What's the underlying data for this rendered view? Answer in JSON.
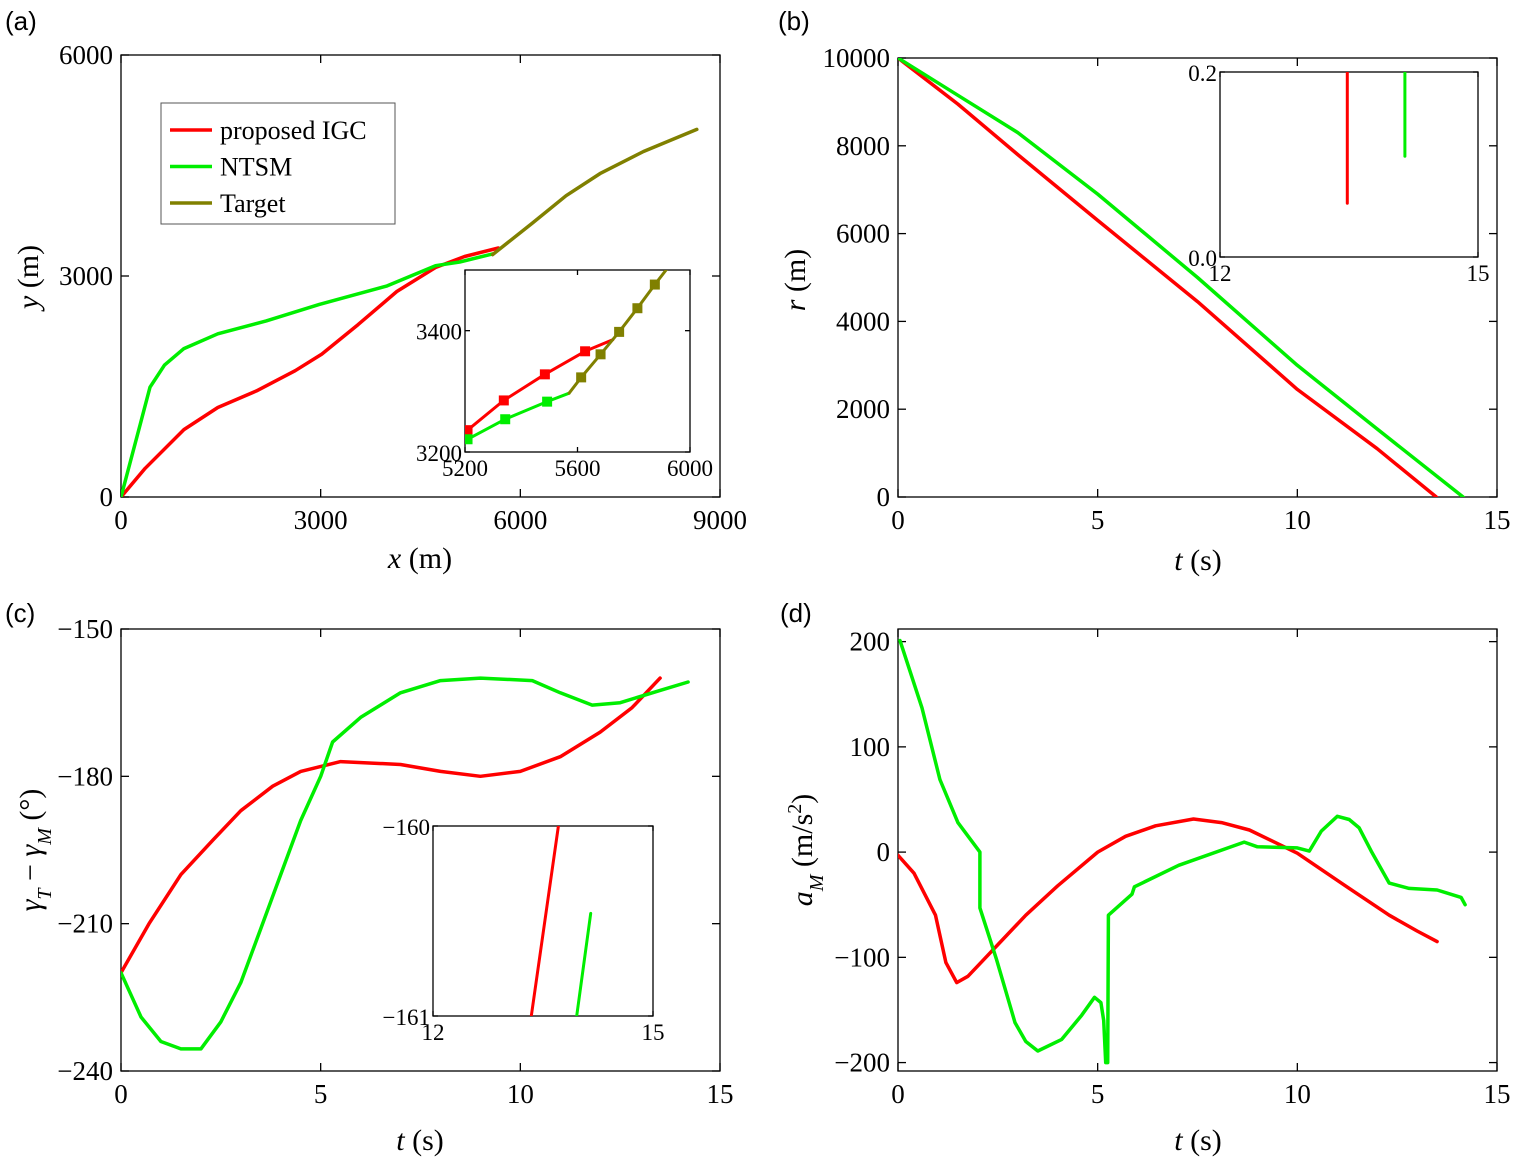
{
  "chart_data": [
    {
      "panel": "(a)",
      "type": "line",
      "xlabel": [
        {
          "t": "x",
          "i": true
        },
        {
          "t": " (m)"
        }
      ],
      "ylabel": [
        {
          "t": "y",
          "i": true
        },
        {
          "t": " (m)"
        }
      ],
      "xlim": [
        0,
        9000
      ],
      "ylim": [
        0,
        6000
      ],
      "xticks": [
        0,
        3000,
        6000,
        9000
      ],
      "yticks": [
        0,
        3000,
        6000
      ],
      "legend": {
        "placement": "top-left",
        "entries": [
          "proposed IGC",
          "NTSM",
          "Target"
        ]
      },
      "series": [
        {
          "name": "proposed IGC",
          "color": "#ff0000",
          "points": [
            [
              0,
              0
            ],
            [
              363,
              390
            ],
            [
              945,
              915
            ],
            [
              1454,
              1215
            ],
            [
              2036,
              1440
            ],
            [
              2617,
              1715
            ],
            [
              3017,
              1940
            ],
            [
              3562,
              2340
            ],
            [
              4144,
              2790
            ],
            [
              4725,
              3115
            ],
            [
              5162,
              3265
            ],
            [
              5671,
              3380
            ]
          ]
        },
        {
          "name": "NTSM",
          "color": "#00ee00",
          "points": [
            [
              0,
              0
            ],
            [
              290,
              990
            ],
            [
              436,
              1490
            ],
            [
              654,
              1790
            ],
            [
              945,
              2015
            ],
            [
              1454,
              2215
            ],
            [
              2181,
              2390
            ],
            [
              2980,
              2615
            ],
            [
              3998,
              2865
            ],
            [
              4725,
              3140
            ],
            [
              5089,
              3190
            ],
            [
              5583,
              3300
            ]
          ]
        },
        {
          "name": "Target",
          "color": "#808000",
          "points": [
            [
              5583,
              3290
            ],
            [
              6179,
              3715
            ],
            [
              6688,
              4090
            ],
            [
              7197,
              4390
            ],
            [
              7851,
              4690
            ],
            [
              8651,
              4990
            ]
          ]
        }
      ],
      "inset": {
        "xlim": [
          5200,
          6000
        ],
        "ylim": [
          3200,
          3500
        ],
        "xticks": [
          5200,
          5600,
          6000
        ],
        "yticks": [
          3200,
          3400
        ],
        "series": [
          {
            "color": "#ff0000",
            "points": [
              [
                5200,
                3232
              ],
              [
                5209,
                3236
              ],
              [
                5338,
                3285
              ],
              [
                5484,
                3328
              ],
              [
                5627,
                3366
              ],
              [
                5725,
                3385
              ]
            ],
            "marker_points": [
              [
                5209,
                3236
              ],
              [
                5338,
                3285
              ],
              [
                5484,
                3328
              ],
              [
                5627,
                3366
              ]
            ]
          },
          {
            "color": "#00ee00",
            "points": [
              [
                5200,
                3216
              ],
              [
                5209,
                3221
              ],
              [
                5343,
                3254
              ],
              [
                5492,
                3283
              ],
              [
                5570,
                3297
              ]
            ],
            "marker_points": [
              [
                5209,
                3221
              ],
              [
                5343,
                3254
              ],
              [
                5492,
                3283
              ]
            ]
          },
          {
            "color": "#808000",
            "points": [
              [
                5570,
                3297
              ],
              [
                5613,
                3323
              ],
              [
                5682,
                3361
              ],
              [
                5748,
                3398
              ],
              [
                5813,
                3437
              ],
              [
                5875,
                3476
              ],
              [
                5915,
                3500
              ]
            ],
            "marker_points": [
              [
                5613,
                3323
              ],
              [
                5682,
                3361
              ],
              [
                5748,
                3398
              ],
              [
                5813,
                3437
              ],
              [
                5875,
                3476
              ]
            ]
          }
        ]
      }
    },
    {
      "panel": "(b)",
      "type": "line",
      "xlabel": [
        {
          "t": "t",
          "i": true
        },
        {
          "t": " (s)"
        }
      ],
      "ylabel": [
        {
          "t": "r",
          "i": true
        },
        {
          "t": " (m)"
        }
      ],
      "xlim": [
        0,
        15
      ],
      "ylim": [
        0,
        10000
      ],
      "xticks": [
        0,
        5,
        10,
        15
      ],
      "yticks": [
        0,
        2000,
        4000,
        6000,
        8000,
        10000
      ],
      "series": [
        {
          "name": "proposed IGC",
          "color": "#ff0000",
          "points": [
            [
              0,
              10000
            ],
            [
              1.5,
              8950
            ],
            [
              3,
              7800
            ],
            [
              5,
              6300
            ],
            [
              7.5,
              4450
            ],
            [
              10,
              2450
            ],
            [
              12,
              1100
            ],
            [
              13.48,
              0
            ]
          ]
        },
        {
          "name": "NTSM",
          "color": "#00ee00",
          "points": [
            [
              0,
              10000
            ],
            [
              1.5,
              9150
            ],
            [
              3,
              8300
            ],
            [
              5,
              6900
            ],
            [
              7.5,
              5000
            ],
            [
              10,
              3000
            ],
            [
              12,
              1550
            ],
            [
              14.15,
              0
            ]
          ]
        }
      ],
      "inset": {
        "xlim": [
          12,
          15
        ],
        "ylim": [
          0,
          0.2
        ],
        "xticks": [
          12,
          15
        ],
        "yticks": [
          0,
          0.2
        ],
        "ytick_labels": [
          "0.0",
          "0.2"
        ],
        "series": [
          {
            "color": "#ff0000",
            "points": [
              [
                13.48,
                0.058
              ],
              [
                13.48,
                0.2
              ]
            ]
          },
          {
            "color": "#00ee00",
            "points": [
              [
                14.15,
                0.109
              ],
              [
                14.15,
                0.2
              ]
            ]
          }
        ]
      }
    },
    {
      "panel": "(c)",
      "type": "line",
      "xlabel": [
        {
          "t": "t",
          "i": true
        },
        {
          "t": " (s)"
        }
      ],
      "ylabel": [
        {
          "t": "γ",
          "i": true
        },
        {
          "t": "T",
          "i": true,
          "sub": true
        },
        {
          "t": " − "
        },
        {
          "t": "γ",
          "i": true
        },
        {
          "t": "M",
          "i": true,
          "sub": true
        },
        {
          "t": " (°)"
        }
      ],
      "xlim": [
        0,
        15
      ],
      "ylim": [
        -240,
        -150
      ],
      "xticks": [
        0,
        5,
        10,
        15
      ],
      "yticks": [
        -240,
        -210,
        -180,
        -150
      ],
      "series": [
        {
          "name": "proposed IGC",
          "color": "#ff0000",
          "points": [
            [
              0,
              -220
            ],
            [
              0.7,
              -210
            ],
            [
              1.5,
              -200
            ],
            [
              2.3,
              -193
            ],
            [
              3,
              -187
            ],
            [
              3.8,
              -182
            ],
            [
              4.5,
              -179
            ],
            [
              5.5,
              -177
            ],
            [
              7,
              -177.6
            ],
            [
              8,
              -179
            ],
            [
              9,
              -180
            ],
            [
              10,
              -179
            ],
            [
              11,
              -176
            ],
            [
              12,
              -171
            ],
            [
              12.8,
              -166
            ],
            [
              13.5,
              -160
            ]
          ]
        },
        {
          "name": "NTSM",
          "color": "#00ee00",
          "points": [
            [
              0,
              -220
            ],
            [
              0.5,
              -229
            ],
            [
              1,
              -234
            ],
            [
              1.5,
              -235.5
            ],
            [
              2,
              -235.5
            ],
            [
              2.5,
              -230
            ],
            [
              3,
              -222
            ],
            [
              3.5,
              -211
            ],
            [
              4,
              -200
            ],
            [
              4.5,
              -189
            ],
            [
              5,
              -180
            ],
            [
              5.3,
              -173
            ],
            [
              6,
              -168
            ],
            [
              7,
              -163
            ],
            [
              8,
              -160.5
            ],
            [
              9,
              -160
            ],
            [
              10.3,
              -160.5
            ],
            [
              11,
              -163
            ],
            [
              11.8,
              -165.5
            ],
            [
              12.5,
              -165
            ],
            [
              13.5,
              -162.5
            ],
            [
              14.2,
              -160.8
            ]
          ]
        }
      ],
      "inset": {
        "xlim": [
          12,
          15
        ],
        "ylim": [
          -161,
          -160
        ],
        "xticks": [
          12,
          15
        ],
        "yticks": [
          -161,
          -160
        ],
        "series": [
          {
            "color": "#ff0000",
            "points": [
              [
                13.34,
                -161
              ],
              [
                13.71,
                -160
              ]
            ]
          },
          {
            "color": "#00ee00",
            "points": [
              [
                13.96,
                -161
              ],
              [
                14.15,
                -160.46
              ]
            ]
          }
        ]
      }
    },
    {
      "panel": "(d)",
      "type": "line",
      "xlabel": [
        {
          "t": "t",
          "i": true
        },
        {
          "t": " (s)"
        }
      ],
      "ylabel": [
        {
          "t": "a",
          "i": true
        },
        {
          "t": "M",
          "i": true,
          "sub": true
        },
        {
          "t": " (m/s"
        },
        {
          "t": "2",
          "sup": true
        },
        {
          "t": ")"
        }
      ],
      "xlim": [
        0,
        15
      ],
      "ylim": [
        -208,
        212
      ],
      "xticks": [
        0,
        5,
        10,
        15
      ],
      "yticks": [
        -200,
        -100,
        0,
        100,
        200
      ],
      "series": [
        {
          "name": "proposed IGC",
          "color": "#ff0000",
          "points": [
            [
              0,
              -3
            ],
            [
              0.4,
              -20
            ],
            [
              0.94,
              -60
            ],
            [
              1.2,
              -105
            ],
            [
              1.47,
              -124
            ],
            [
              1.75,
              -118
            ],
            [
              2.1,
              -104
            ],
            [
              2.6,
              -84
            ],
            [
              3.2,
              -60
            ],
            [
              4,
              -32
            ],
            [
              5,
              0
            ],
            [
              5.7,
              15
            ],
            [
              6.45,
              25
            ],
            [
              7.4,
              31.5
            ],
            [
              8.1,
              28
            ],
            [
              8.8,
              21
            ],
            [
              10,
              -1
            ],
            [
              11.1,
              -29.5
            ],
            [
              12.3,
              -60
            ],
            [
              13,
              -75
            ],
            [
              13.5,
              -85
            ]
          ]
        },
        {
          "name": "NTSM",
          "color": "#00ee00",
          "points": [
            [
              0.05,
              201
            ],
            [
              0.6,
              137
            ],
            [
              1.05,
              69
            ],
            [
              1.5,
              28
            ],
            [
              2.05,
              0
            ],
            [
              2.05,
              -53
            ],
            [
              2.46,
              -101
            ],
            [
              2.93,
              -162
            ],
            [
              3.2,
              -180
            ],
            [
              3.5,
              -189
            ],
            [
              4.1,
              -178
            ],
            [
              4.6,
              -155
            ],
            [
              4.92,
              -138
            ],
            [
              5.08,
              -143
            ],
            [
              5.15,
              -160
            ],
            [
              5.2,
              -200
            ],
            [
              5.25,
              -200
            ],
            [
              5.27,
              -60
            ],
            [
              5.86,
              -40
            ],
            [
              5.92,
              -33
            ],
            [
              7.03,
              -12.5
            ],
            [
              8.67,
              9.5
            ],
            [
              9.0,
              5
            ],
            [
              10,
              4
            ],
            [
              10.3,
              1
            ],
            [
              10.6,
              20
            ],
            [
              11.0,
              34
            ],
            [
              11.3,
              31
            ],
            [
              11.55,
              23
            ],
            [
              11.85,
              1
            ],
            [
              12.3,
              -29.5
            ],
            [
              12.8,
              -34.5
            ],
            [
              13.5,
              -36
            ],
            [
              14.1,
              -43
            ],
            [
              14.2,
              -50
            ]
          ]
        }
      ]
    }
  ]
}
